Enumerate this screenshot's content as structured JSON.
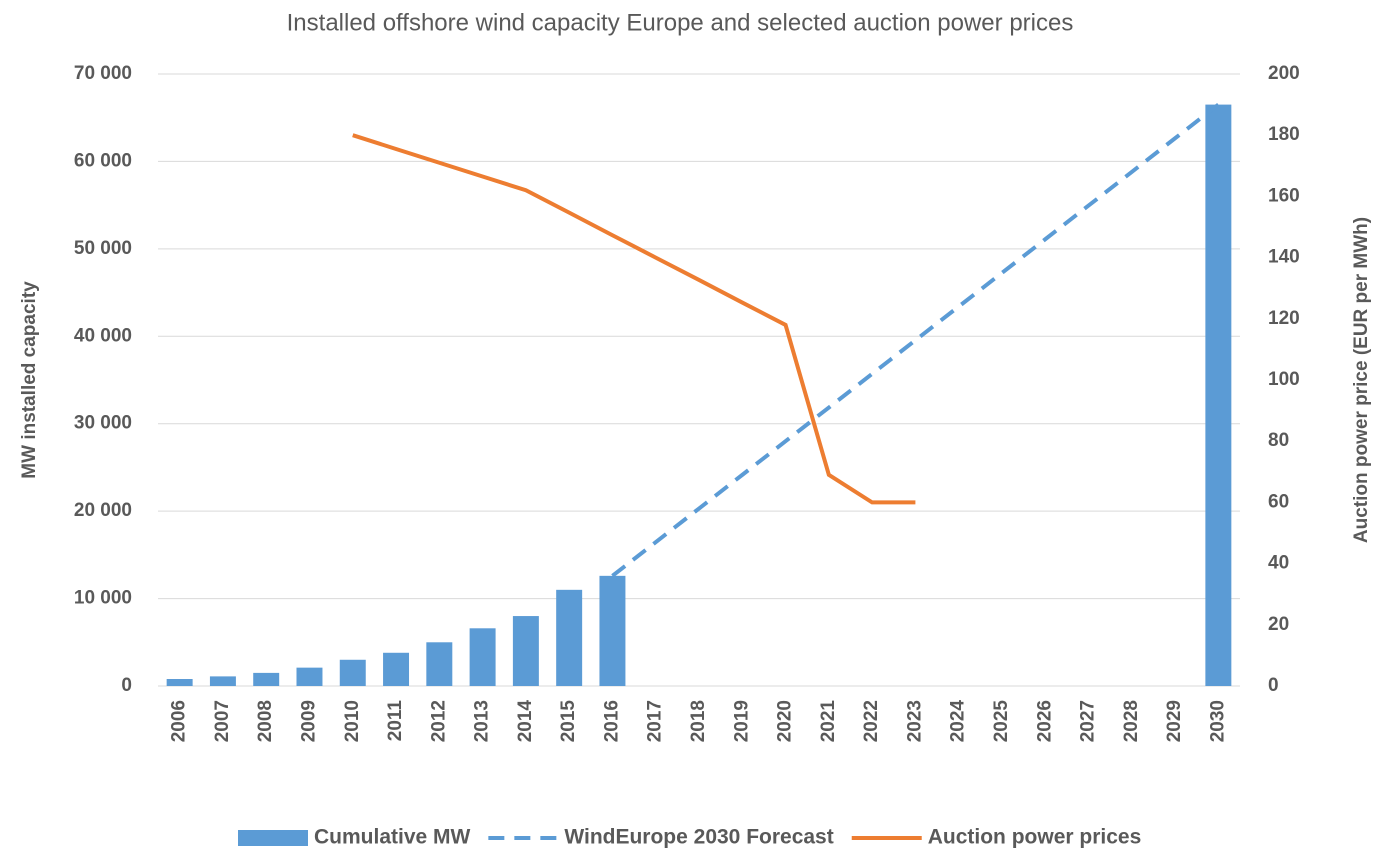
{
  "chart_data": {
    "type": "bar",
    "title": "Installed offshore wind capacity Europe and selected auction power prices",
    "y_label": "MW installed capacity",
    "y2_label": "Auction power price  (EUR per MWh)",
    "categories": [
      "2006",
      "2007",
      "2008",
      "2009",
      "2010",
      "2011",
      "2012",
      "2013",
      "2014",
      "2015",
      "2016",
      "2017",
      "2018",
      "2019",
      "2020",
      "2021",
      "2022",
      "2023",
      "2024",
      "2025",
      "2026",
      "2027",
      "2028",
      "2029",
      "2030"
    ],
    "series": [
      {
        "name": "Cumulative MW",
        "type": "bar",
        "color": "#5b9bd5",
        "values": [
          800,
          1100,
          1500,
          2100,
          3000,
          3800,
          5000,
          6600,
          8000,
          11000,
          12600,
          null,
          null,
          null,
          null,
          null,
          null,
          null,
          null,
          null,
          null,
          null,
          null,
          null,
          66500
        ]
      },
      {
        "name": "WindEurope 2030 Forecast",
        "type": "line",
        "dashed": true,
        "color": "#5b9bd5",
        "values": [
          null,
          null,
          null,
          null,
          null,
          null,
          null,
          null,
          null,
          null,
          12600,
          16450,
          20300,
          24150,
          28000,
          31850,
          35700,
          39550,
          43400,
          47250,
          51100,
          54950,
          58800,
          62650,
          66500
        ]
      },
      {
        "name": "Auction power prices",
        "type": "line",
        "axis": "y2",
        "color": "#ed7d31",
        "values": [
          null,
          null,
          null,
          null,
          180,
          175.5,
          171,
          166.5,
          162,
          154.7,
          147.3,
          140,
          132.7,
          125.3,
          118,
          69,
          60,
          60,
          null,
          null,
          null,
          null,
          null,
          null,
          null
        ]
      }
    ],
    "ylim": [
      0,
      70000
    ],
    "yticks": [
      0,
      {
        "value": 10000,
        "label": "10 000"
      },
      {
        "value": 20000,
        "label": "20 000"
      },
      {
        "value": 30000,
        "label": "30 000"
      },
      {
        "value": 40000,
        "label": "40 000"
      },
      {
        "value": 50000,
        "label": "50 000"
      },
      {
        "value": 60000,
        "label": "60 000"
      },
      {
        "value": 70000,
        "label": "70 000"
      }
    ],
    "y2lim": [
      0,
      200
    ],
    "y2ticks": [
      0,
      20,
      40,
      60,
      80,
      100,
      120,
      140,
      160,
      180,
      200
    ],
    "grid": true,
    "legend": "bottom"
  }
}
